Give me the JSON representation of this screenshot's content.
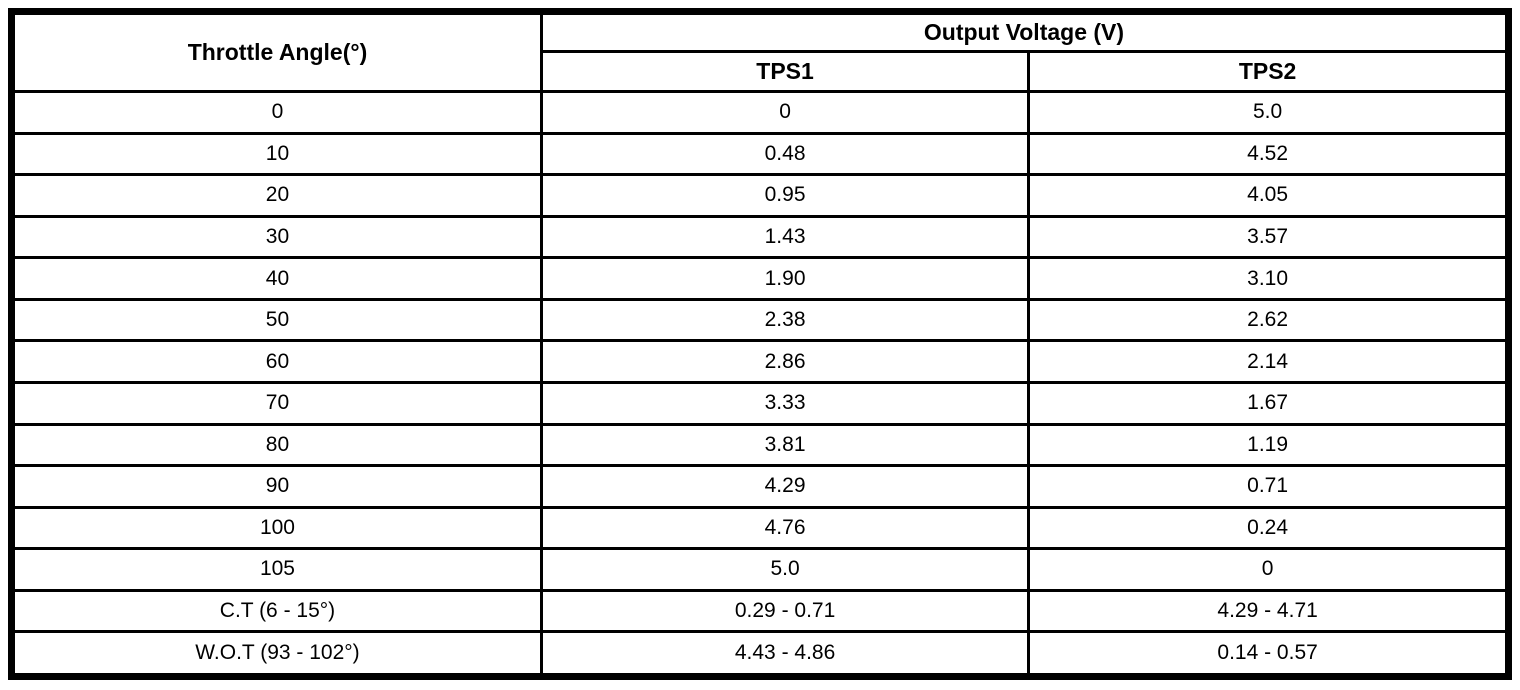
{
  "table": {
    "angle_header": "Throttle Angle(°)",
    "group_header": "Output Voltage (V)",
    "sub_headers": [
      "TPS1",
      "TPS2"
    ],
    "rows": [
      {
        "angle": "0",
        "tps1": "0",
        "tps2": "5.0"
      },
      {
        "angle": "10",
        "tps1": "0.48",
        "tps2": "4.52"
      },
      {
        "angle": "20",
        "tps1": "0.95",
        "tps2": "4.05"
      },
      {
        "angle": "30",
        "tps1": "1.43",
        "tps2": "3.57"
      },
      {
        "angle": "40",
        "tps1": "1.90",
        "tps2": "3.10"
      },
      {
        "angle": "50",
        "tps1": "2.38",
        "tps2": "2.62"
      },
      {
        "angle": "60",
        "tps1": "2.86",
        "tps2": "2.14"
      },
      {
        "angle": "70",
        "tps1": "3.33",
        "tps2": "1.67"
      },
      {
        "angle": "80",
        "tps1": "3.81",
        "tps2": "1.19"
      },
      {
        "angle": "90",
        "tps1": "4.29",
        "tps2": "0.71"
      },
      {
        "angle": "100",
        "tps1": "4.76",
        "tps2": "0.24"
      },
      {
        "angle": "105",
        "tps1": "5.0",
        "tps2": "0"
      },
      {
        "angle": "C.T (6 - 15°)",
        "tps1": "0.29 - 0.71",
        "tps2": "4.29 - 4.71"
      },
      {
        "angle": "W.O.T (93 - 102°)",
        "tps1": "4.43 - 4.86",
        "tps2": "0.14 - 0.57"
      }
    ]
  }
}
